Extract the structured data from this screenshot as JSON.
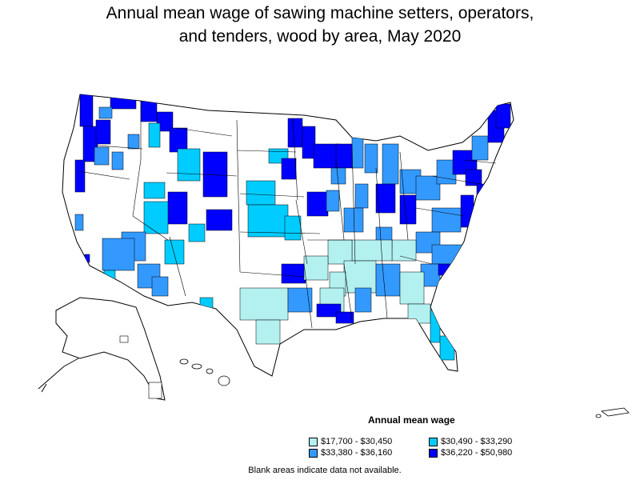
{
  "title": {
    "line1": "Annual mean wage of sawing machine setters, operators,",
    "line2": "and tenders, wood by area, May 2020"
  },
  "legend": {
    "title": "Annual mean wage",
    "items": [
      {
        "label": "$17,700 - $30,450",
        "color": "#b3f0f0"
      },
      {
        "label": "$30,490 - $33,290",
        "color": "#00ccff"
      },
      {
        "label": "$33,380 - $36,160",
        "color": "#3399ff"
      },
      {
        "label": "$36,220 - $50,980",
        "color": "#0000ff"
      }
    ]
  },
  "note": "Blank areas indicate data not available.",
  "colors": {
    "blank": "#ffffff",
    "border": "#000000"
  }
}
